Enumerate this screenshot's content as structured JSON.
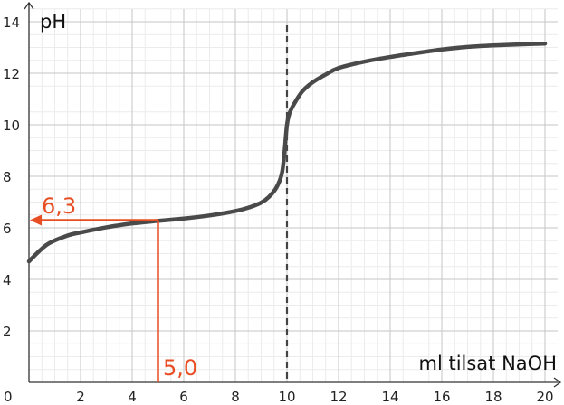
{
  "chart_data": {
    "type": "line",
    "xlabel": "ml tilsat NaOH",
    "ylabel": "pH",
    "xlim": [
      0,
      20
    ],
    "ylim": [
      0,
      14
    ],
    "grid": true,
    "x_ticks": [
      "0",
      "2",
      "4",
      "6",
      "8",
      "10",
      "12",
      "14",
      "16",
      "18",
      "20"
    ],
    "y_ticks": [
      "2",
      "4",
      "6",
      "8",
      "10",
      "12",
      "14"
    ],
    "series": [
      {
        "color": "#4a4a4a",
        "x": [
          0,
          0.7,
          1.5,
          2,
          3,
          4,
          5,
          6,
          7,
          8,
          8.5,
          9,
          9.3,
          9.6,
          9.8,
          9.9,
          10,
          10.1,
          10.3,
          10.6,
          11,
          11.5,
          12,
          13,
          14,
          15,
          16,
          17,
          18,
          19,
          20
        ],
        "y": [
          4.7,
          5.35,
          5.7,
          5.82,
          6.02,
          6.17,
          6.27,
          6.36,
          6.48,
          6.65,
          6.78,
          6.98,
          7.2,
          7.58,
          8.1,
          8.9,
          10.0,
          10.45,
          10.85,
          11.3,
          11.65,
          11.95,
          12.2,
          12.45,
          12.63,
          12.78,
          12.92,
          13.02,
          13.08,
          13.12,
          13.15
        ]
      }
    ],
    "equivalence_line": {
      "x": 10,
      "color": "#444444"
    },
    "annotations": [
      {
        "text": "6,3",
        "y_value": 6.3,
        "color": "#e84e24"
      },
      {
        "text": "5,0",
        "x_value": 5.0,
        "color": "#e84e24"
      }
    ]
  }
}
